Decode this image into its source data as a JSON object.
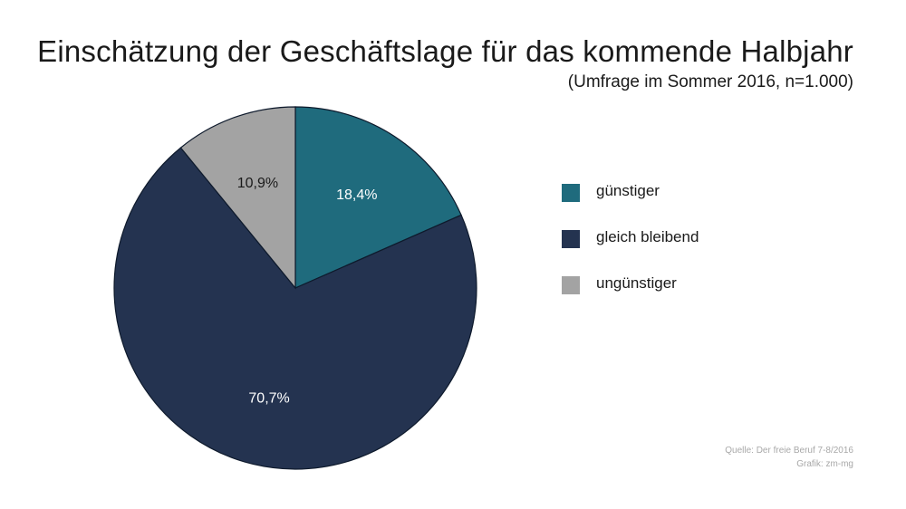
{
  "chart_data": {
    "type": "pie",
    "title": "Einschätzung der Geschäftslage für das kommende Halbjahr",
    "subtitle": "(Umfrage im Sommer 2016, n=1.000)",
    "slices": [
      {
        "name": "günstiger",
        "value": 18.4,
        "label": "18,4%",
        "color": "#1f6b7d"
      },
      {
        "name": "gleich bleibend",
        "value": 70.7,
        "label": "70,7%",
        "color": "#243350"
      },
      {
        "name": "ungünstiger",
        "value": 10.9,
        "label": "10,9%",
        "color": "#a3a3a3"
      }
    ],
    "start_angle": "12 o'clock",
    "direction": "clockwise",
    "legend_position": "right"
  },
  "source": {
    "line1": "Quelle: Der freie Beruf 7-8/2016",
    "line2": "Grafik: zm-mg"
  }
}
